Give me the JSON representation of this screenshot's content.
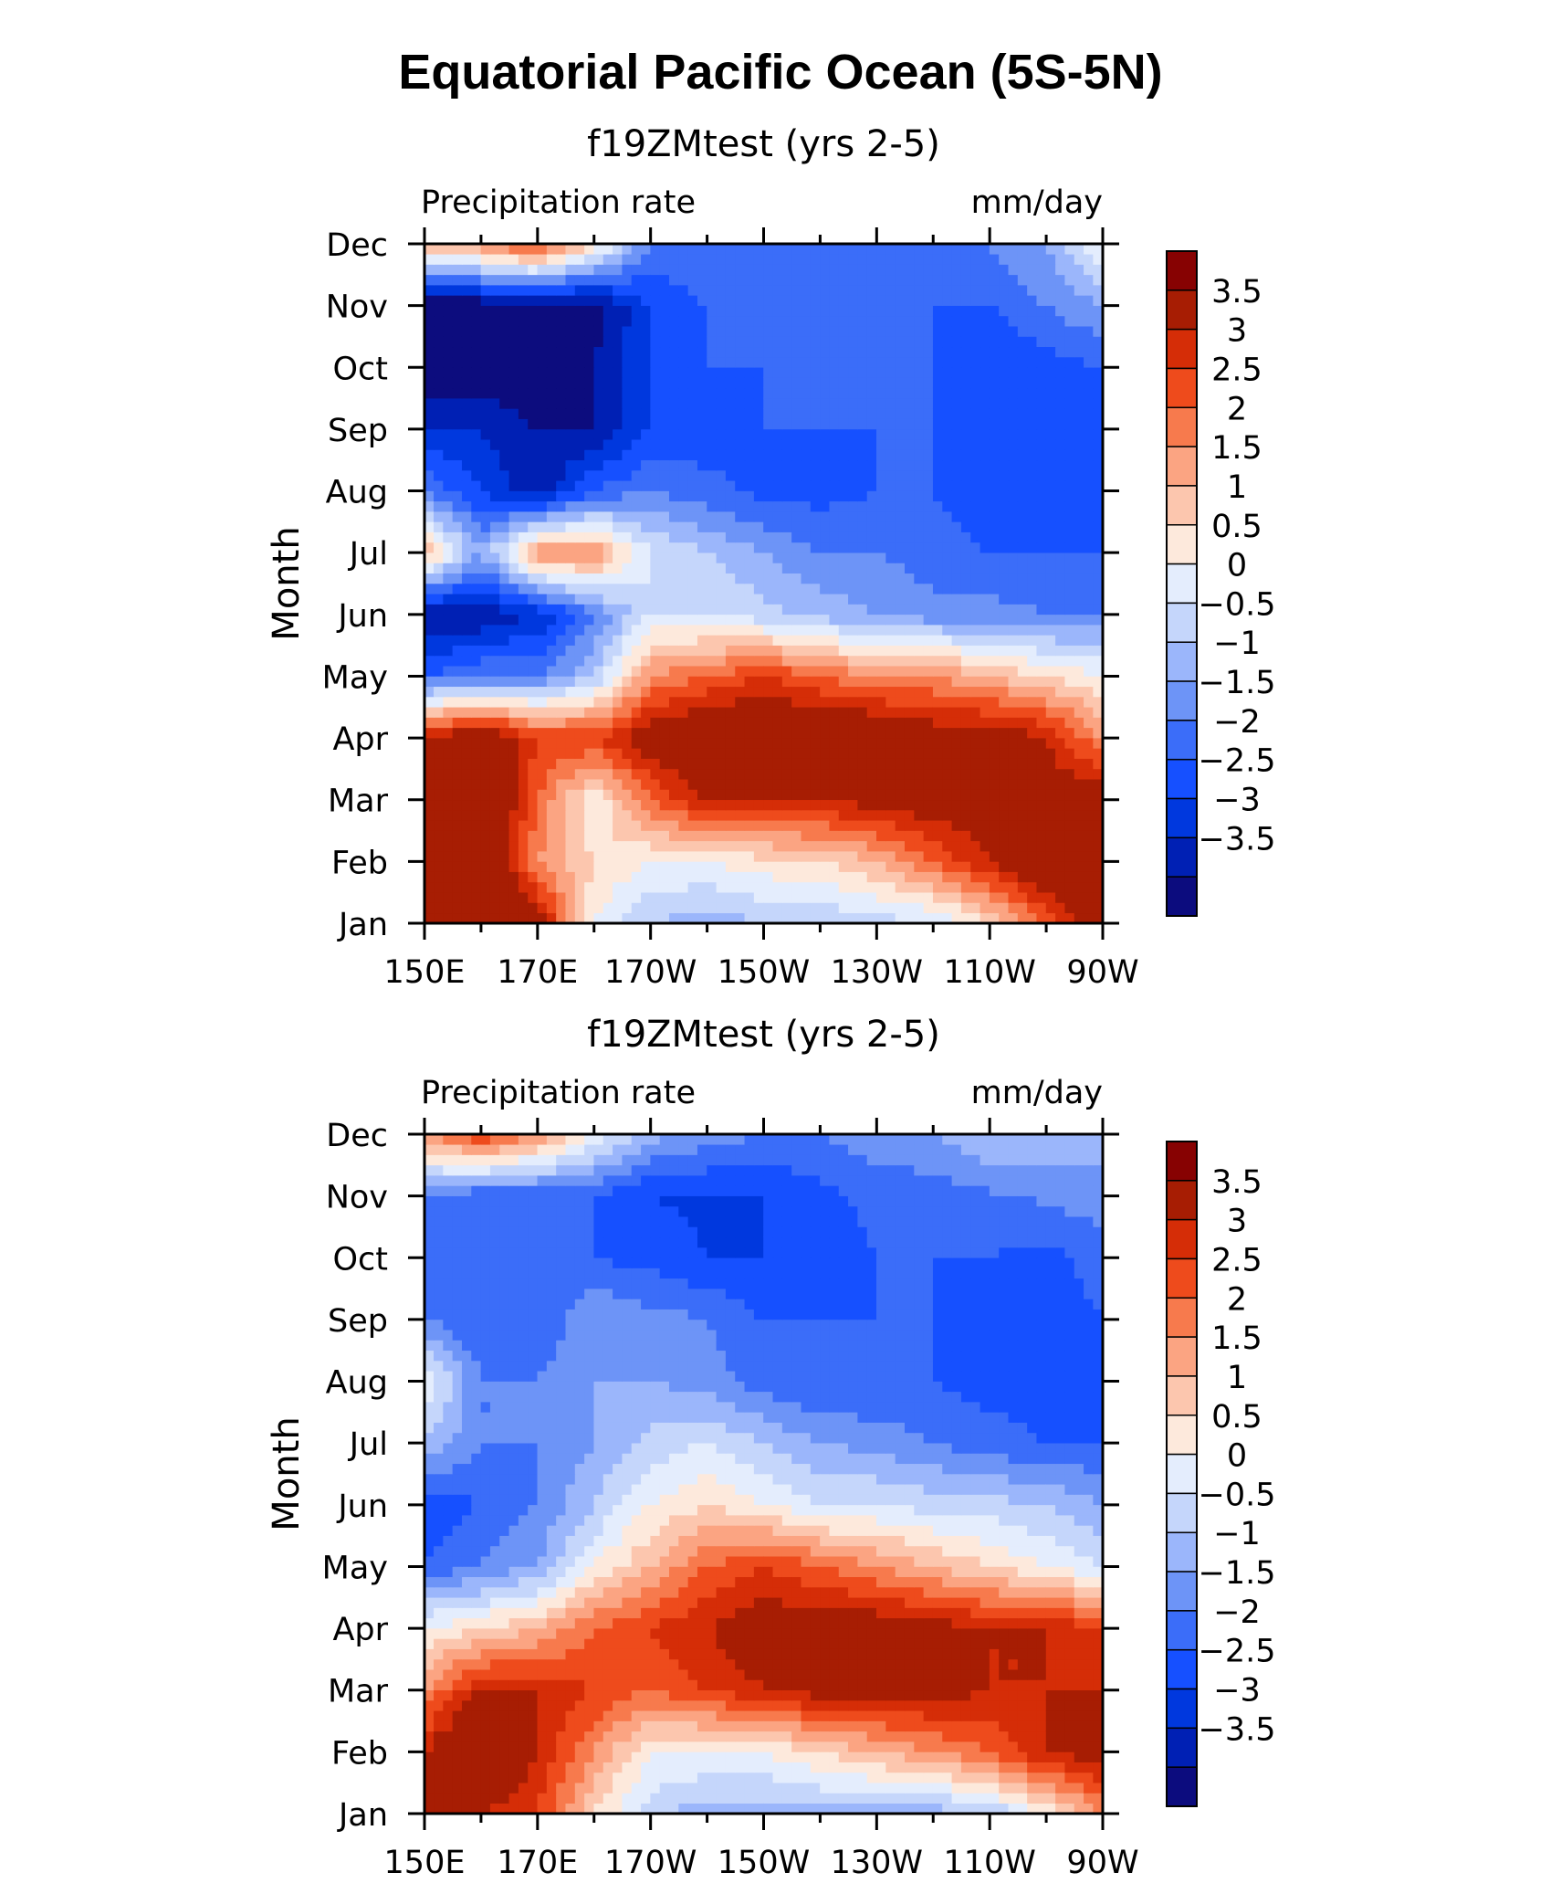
{
  "figure": {
    "title": "Equatorial Pacific Ocean (5S-5N)"
  },
  "chart_data": [
    {
      "type": "heatmap",
      "title": "f19ZMtest (yrs 2-5)",
      "left_string": "Precipitation rate",
      "right_string": "mm/day",
      "ylabel": "Month",
      "x_ticklabels": [
        "150E",
        "170E",
        "170W",
        "150W",
        "130W",
        "110W",
        "90W"
      ],
      "x_range": [
        150,
        270
      ],
      "y_ticklabels": [
        "Jan",
        "Feb",
        "Mar",
        "Apr",
        "May",
        "Jun",
        "Jul",
        "Aug",
        "Sep",
        "Oct",
        "Nov",
        "Dec"
      ],
      "x": [
        150,
        160,
        170,
        180,
        190,
        200,
        210,
        220,
        230,
        240,
        250,
        260,
        270
      ],
      "z": [
        [
          5,
          5,
          4,
          0.5,
          -0.5,
          -0.8,
          -0.5,
          -0.5,
          -0.2,
          -0.1,
          1,
          2.5,
          4.5
        ],
        [
          5,
          5,
          2,
          1,
          0.5,
          0.5,
          0.8,
          1,
          1.5,
          2.5,
          3.5,
          4.5,
          5
        ],
        [
          5,
          5,
          2.5,
          0.5,
          2.5,
          3.5,
          3.5,
          3.5,
          3.8,
          4,
          4,
          4,
          4
        ],
        [
          3.5,
          4.5,
          3,
          3,
          4,
          4.5,
          4.5,
          4.5,
          4.5,
          4,
          4,
          3.5,
          2
        ],
        [
          -2,
          -1.5,
          -1.5,
          -0.5,
          2,
          2.5,
          3,
          2.5,
          2,
          2,
          1.5,
          1,
          0.5
        ],
        [
          -3.5,
          -3.5,
          -3,
          -1.5,
          0,
          0,
          -0.3,
          -0.7,
          -1,
          -1.3,
          -1.3,
          -1.5,
          -1.5
        ],
        [
          1.5,
          -1,
          2,
          2,
          0,
          -0.5,
          -1,
          -1.5,
          -1.5,
          -1.8,
          -2,
          -2,
          -2
        ],
        [
          -1.5,
          -2.5,
          -3.5,
          -2,
          -1.5,
          -1.8,
          -2.2,
          -2.2,
          -2,
          -2,
          -2.3,
          -2.3,
          -2
        ],
        [
          -3,
          -3,
          -3.5,
          -3.5,
          -2.5,
          -2.3,
          -2,
          -2,
          -2,
          -2,
          -2.3,
          -2.3,
          -2.2
        ],
        [
          -4,
          -4,
          -4,
          -3.5,
          -2.5,
          -2,
          -2,
          -2,
          -2,
          -2,
          -2.5,
          -2.2,
          -2
        ],
        [
          -4,
          -4,
          -4,
          -3.8,
          -2.5,
          -2,
          -2,
          -2,
          -2,
          -2,
          -2,
          -1.5,
          -1
        ],
        [
          1.5,
          2,
          3,
          1,
          -1.5,
          -1.5,
          -1.5,
          -1.5,
          -1.5,
          -1.5,
          -1.5,
          -1,
          0.5
        ]
      ]
    },
    {
      "type": "heatmap",
      "title": "f19ZMtest (yrs 2-5)",
      "left_string": "Precipitation rate",
      "right_string": "mm/day",
      "ylabel": "Month",
      "x_ticklabels": [
        "150E",
        "170E",
        "170W",
        "150W",
        "130W",
        "110W",
        "90W"
      ],
      "x_range": [
        150,
        270
      ],
      "y_ticklabels": [
        "Jan",
        "Feb",
        "Mar",
        "Apr",
        "May",
        "Jun",
        "Jul",
        "Aug",
        "Sep",
        "Oct",
        "Nov",
        "Dec"
      ],
      "x": [
        150,
        160,
        170,
        180,
        190,
        200,
        210,
        220,
        230,
        240,
        250,
        260,
        270
      ],
      "z": [
        [
          3.5,
          3.5,
          3,
          1,
          -0.3,
          -0.8,
          -0.8,
          -0.7,
          -0.8,
          -0.8,
          -0.5,
          0.5,
          2
        ],
        [
          3.5,
          5,
          3.5,
          2,
          0.5,
          0.5,
          0.5,
          1,
          1.5,
          2,
          2.5,
          3.5,
          4
        ],
        [
          2,
          3.5,
          3.5,
          3,
          2.5,
          3,
          3.5,
          3.8,
          3.8,
          3.8,
          3.5,
          3.5,
          3.5
        ],
        [
          0.5,
          1,
          1.5,
          2.5,
          3,
          3.5,
          4,
          4,
          4,
          3.8,
          3.5,
          3.5,
          3
        ],
        [
          -2,
          -1.5,
          -1,
          0.5,
          1.5,
          2.5,
          3,
          2.5,
          2,
          1.5,
          1,
          0.5,
          0
        ],
        [
          -2.5,
          -2,
          -1.5,
          -0.5,
          0.5,
          1,
          0.5,
          0,
          0,
          -0.2,
          -0.3,
          -0.5,
          -1
        ],
        [
          -0.5,
          -1.5,
          -1.5,
          -1,
          -0.3,
          0,
          -0.5,
          -1,
          -1.2,
          -1.5,
          -1.8,
          -2,
          -2
        ],
        [
          0.5,
          -1.5,
          -1.5,
          -1,
          -1,
          -1.2,
          -1.8,
          -2,
          -2,
          -2,
          -2.2,
          -2.2,
          -2
        ],
        [
          -1.5,
          -2,
          -2,
          -1,
          -1.3,
          -1.5,
          -2,
          -2,
          -2,
          -2,
          -2.2,
          -2.2,
          -2
        ],
        [
          -2,
          -2,
          -2,
          -2,
          -2.2,
          -2.5,
          -2.5,
          -2.3,
          -2,
          -2,
          -2,
          -2.2,
          -1.8
        ],
        [
          -1.5,
          -2,
          -2,
          -2,
          -2.5,
          -2.6,
          -2.5,
          -2.2,
          -1.8,
          -1.8,
          -1.6,
          -1.4,
          -1.2
        ],
        [
          2,
          3,
          2,
          0.5,
          -0.8,
          -1.2,
          -1.5,
          -1.5,
          -1.2,
          -1,
          -0.5,
          -0.5,
          -0.8
        ]
      ]
    }
  ],
  "colorbar": {
    "labels": [
      "3.5",
      "3",
      "2.5",
      "2",
      "1.5",
      "1",
      "0.5",
      "0",
      "−0.5",
      "−1",
      "−1.5",
      "−2",
      "−2.5",
      "−3",
      "−3.5"
    ],
    "levels": [
      -3.5,
      -3,
      -2.5,
      -2,
      -1.5,
      -1,
      -0.5,
      0,
      0.5,
      1,
      1.5,
      2,
      2.5,
      3,
      3.5
    ],
    "colors": [
      "#0c0c7e",
      "#0020b4",
      "#0038de",
      "#1650ff",
      "#3b6df9",
      "#6d94f7",
      "#9bb6fb",
      "#c5d6fb",
      "#e4edfd",
      "#fde9dc",
      "#fcc6ae",
      "#fba482",
      "#f77a4d",
      "#ee4b1c",
      "#d52d07",
      "#a71d03",
      "#870202"
    ]
  }
}
